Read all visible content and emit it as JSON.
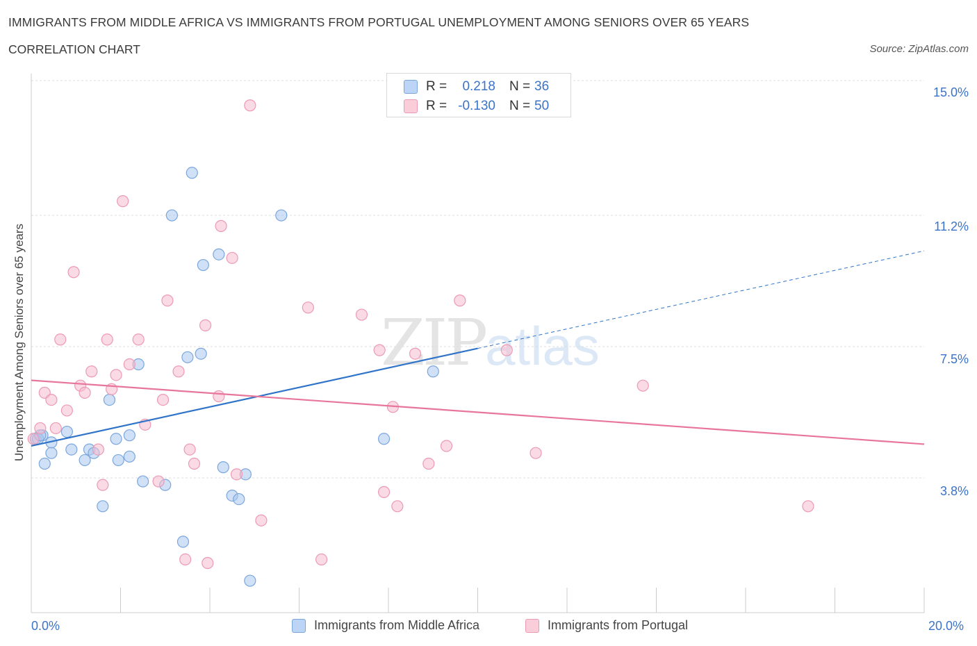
{
  "header": {
    "title": "IMMIGRANTS FROM MIDDLE AFRICA VS IMMIGRANTS FROM PORTUGAL UNEMPLOYMENT AMONG SENIORS OVER 65 YEARS",
    "subtitle": "CORRELATION CHART",
    "source": "Source: ZipAtlas.com"
  },
  "watermark": {
    "zip": "ZIP",
    "atlas": "atlas"
  },
  "legend": {
    "rows": [
      {
        "r_label": "R =",
        "r_value": "0.218",
        "n_label": "N =",
        "n_value": "36",
        "color": "#a9c8f0"
      },
      {
        "r_label": "R =",
        "r_value": "-0.130",
        "n_label": "N =",
        "n_value": "50",
        "color": "#f6bccd"
      }
    ]
  },
  "colors": {
    "blue_fill": "#a9c8f0",
    "blue_stroke": "#7aa6dc",
    "blue_line": "#2f74c8",
    "pink_fill": "#f6bccd",
    "pink_stroke": "#ec9ab3",
    "pink_line": "#e8759b",
    "grid": "#dcdcdc",
    "axis_text": "#3b73c9"
  },
  "chart_data": {
    "type": "scatter",
    "title": "IMMIGRANTS FROM MIDDLE AFRICA VS IMMIGRANTS FROM PORTUGAL UNEMPLOYMENT AMONG SENIORS OVER 65 YEARS",
    "xlabel": "",
    "ylabel": "Unemployment Among Seniors over 65 years",
    "xlim": [
      0,
      20
    ],
    "ylim": [
      0,
      15
    ],
    "x_tick_labels": [
      "0.0%",
      "20.0%"
    ],
    "y_ticks": [
      3.8,
      7.5,
      11.2,
      15.0
    ],
    "y_tick_labels": [
      "3.8%",
      "7.5%",
      "11.2%",
      "15.0%"
    ],
    "series": [
      {
        "name": "Immigrants from Middle Africa",
        "color": "#a9c8f0",
        "points": [
          [
            0.1,
            4.9
          ],
          [
            0.25,
            5.0
          ],
          [
            0.45,
            4.8
          ],
          [
            0.8,
            5.1
          ],
          [
            0.45,
            4.5
          ],
          [
            0.9,
            4.6
          ],
          [
            1.3,
            4.6
          ],
          [
            1.4,
            4.5
          ],
          [
            0.3,
            4.2
          ],
          [
            1.2,
            4.3
          ],
          [
            1.9,
            4.9
          ],
          [
            2.2,
            5.0
          ],
          [
            1.75,
            6.0
          ],
          [
            1.95,
            4.3
          ],
          [
            2.2,
            4.4
          ],
          [
            2.4,
            7.0
          ],
          [
            2.5,
            3.7
          ],
          [
            3.0,
            3.6
          ],
          [
            1.6,
            3.0
          ],
          [
            3.15,
            11.2
          ],
          [
            3.6,
            12.4
          ],
          [
            3.8,
            7.3
          ],
          [
            3.5,
            7.2
          ],
          [
            3.4,
            2.0
          ],
          [
            3.85,
            9.8
          ],
          [
            4.2,
            10.1
          ],
          [
            4.3,
            4.1
          ],
          [
            4.5,
            3.3
          ],
          [
            4.65,
            3.2
          ],
          [
            4.8,
            3.9
          ],
          [
            4.9,
            0.9
          ],
          [
            5.6,
            11.2
          ],
          [
            7.9,
            4.9
          ],
          [
            9.0,
            6.8
          ],
          [
            0.15,
            4.9
          ],
          [
            0.2,
            5.0
          ]
        ]
      },
      {
        "name": "Immigrants from Portugal",
        "color": "#f6bccd",
        "points": [
          [
            0.05,
            4.9
          ],
          [
            0.2,
            5.2
          ],
          [
            0.3,
            6.2
          ],
          [
            0.45,
            6.0
          ],
          [
            0.65,
            7.7
          ],
          [
            0.8,
            5.7
          ],
          [
            0.55,
            5.2
          ],
          [
            0.95,
            9.6
          ],
          [
            1.1,
            6.4
          ],
          [
            1.2,
            6.2
          ],
          [
            1.35,
            6.8
          ],
          [
            1.5,
            4.6
          ],
          [
            1.6,
            3.6
          ],
          [
            1.7,
            7.7
          ],
          [
            1.8,
            6.3
          ],
          [
            1.9,
            6.7
          ],
          [
            2.05,
            11.6
          ],
          [
            2.2,
            7.0
          ],
          [
            2.4,
            7.7
          ],
          [
            2.55,
            5.3
          ],
          [
            2.85,
            3.7
          ],
          [
            2.95,
            6.0
          ],
          [
            3.05,
            8.8
          ],
          [
            3.3,
            6.8
          ],
          [
            3.45,
            1.5
          ],
          [
            3.55,
            4.6
          ],
          [
            3.65,
            4.2
          ],
          [
            3.9,
            8.1
          ],
          [
            3.95,
            1.4
          ],
          [
            4.2,
            6.1
          ],
          [
            4.25,
            10.9
          ],
          [
            4.5,
            10.0
          ],
          [
            4.6,
            3.9
          ],
          [
            4.9,
            14.3
          ],
          [
            5.15,
            2.6
          ],
          [
            6.2,
            8.6
          ],
          [
            6.5,
            1.5
          ],
          [
            7.4,
            8.4
          ],
          [
            7.8,
            7.4
          ],
          [
            7.9,
            3.4
          ],
          [
            8.1,
            5.8
          ],
          [
            8.2,
            3.0
          ],
          [
            8.6,
            7.3
          ],
          [
            8.9,
            4.2
          ],
          [
            9.3,
            4.7
          ],
          [
            9.6,
            8.8
          ],
          [
            10.65,
            7.4
          ],
          [
            11.3,
            4.5
          ],
          [
            13.7,
            6.4
          ],
          [
            17.4,
            3.0
          ]
        ]
      }
    ],
    "trend_lines": [
      {
        "series": "Immigrants from Middle Africa",
        "x_start": 0,
        "y_start": 4.7,
        "x_end": 10,
        "y_end": 7.45,
        "x_dash_end": 20,
        "y_dash_end": 10.2
      },
      {
        "series": "Immigrants from Portugal",
        "x_start": 0,
        "y_start": 6.55,
        "x_end": 20,
        "y_end": 4.75
      }
    ]
  }
}
